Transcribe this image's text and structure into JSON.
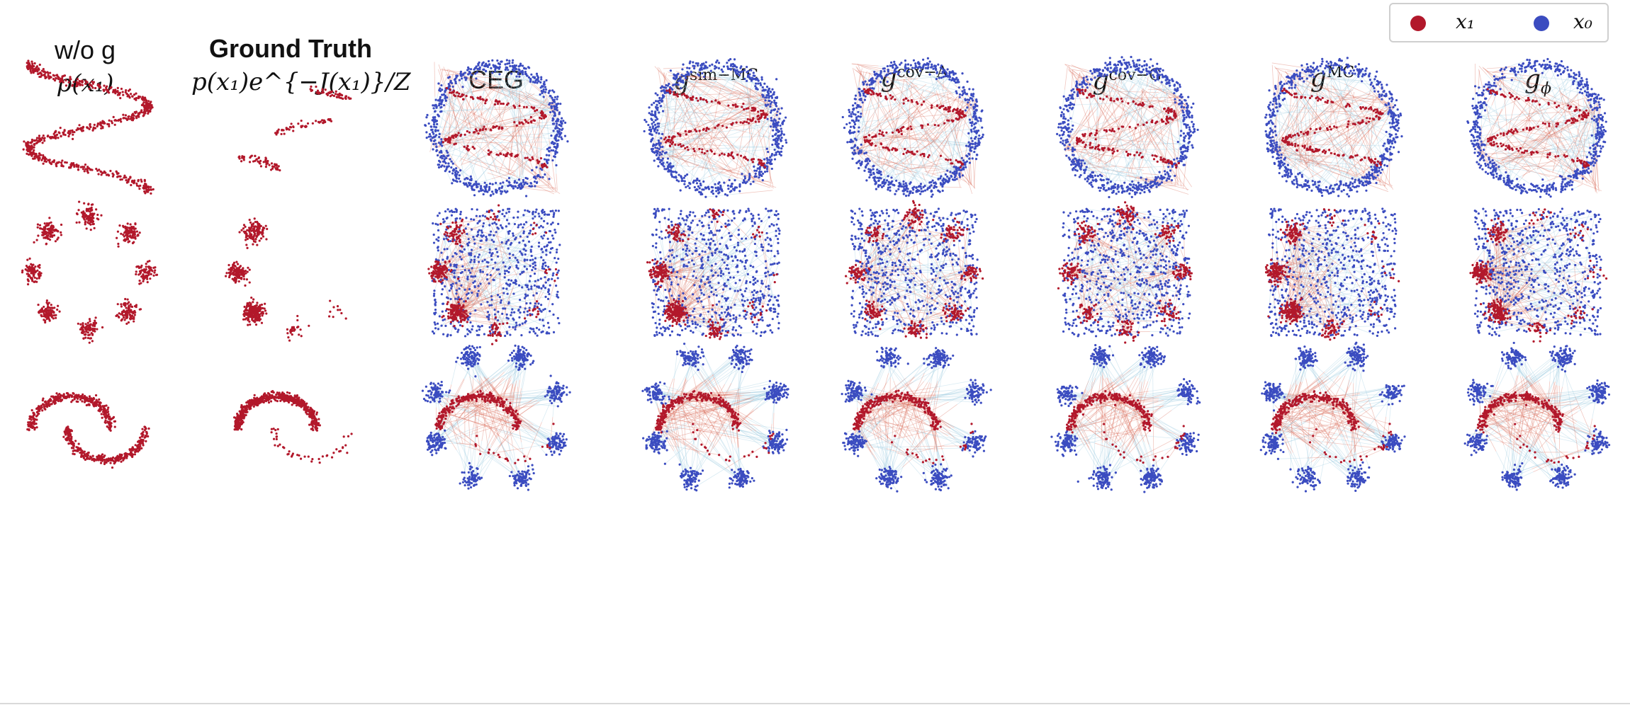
{
  "colors": {
    "x1": "#b2182b",
    "x0": "#3b4cc0",
    "flow_red": "#d6604d",
    "flow_blue": "#92c5de"
  },
  "legend": {
    "x1_label": "x₁",
    "x0_label": "x₀"
  },
  "columns": [
    {
      "line1": "w/o g",
      "line2": "p(x₁)"
    },
    {
      "line1": "Ground Truth",
      "line2": "p(x₁)e^{−J(x₁)}/Z"
    },
    {
      "line1": "CEG"
    },
    {
      "line1": "g",
      "sup": "sim−MC"
    },
    {
      "line1": "g",
      "sup": "cov−A"
    },
    {
      "line1": "g",
      "sup": "cov−G"
    },
    {
      "line1": "g",
      "sup": "MC"
    },
    {
      "line1": "g",
      "sub": "ϕ"
    }
  ],
  "rows": [
    "s-curve",
    "eight-gaussians",
    "two-moons"
  ]
}
